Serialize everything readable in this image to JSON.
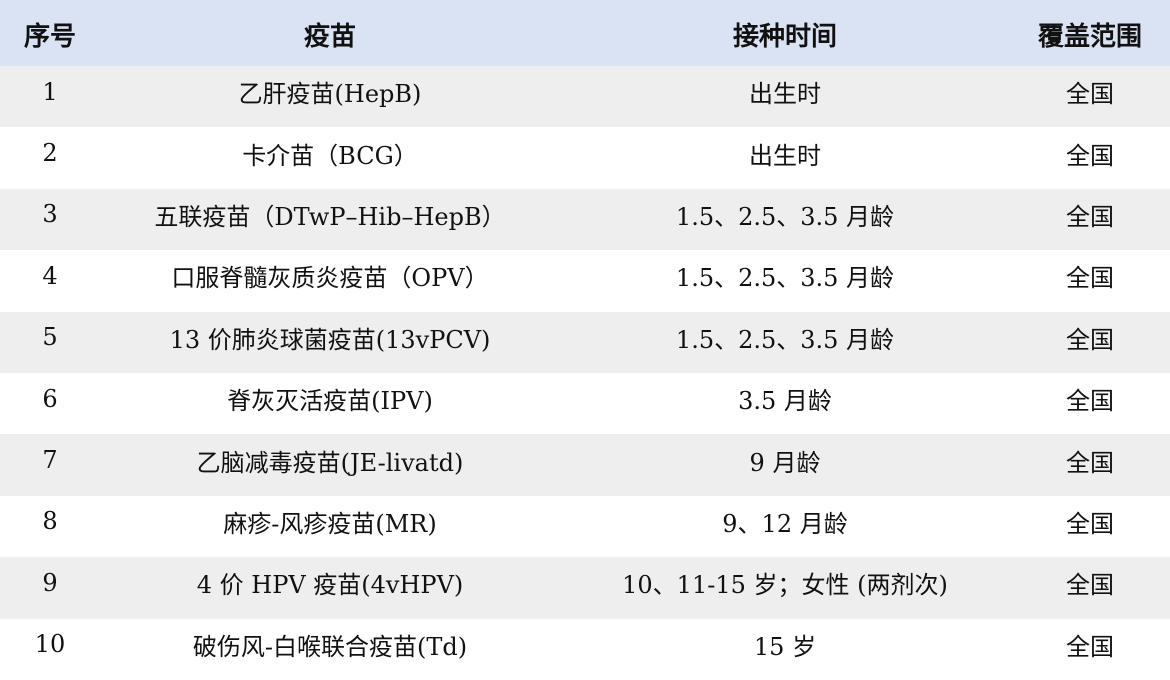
{
  "table": {
    "headers": {
      "index": "序号",
      "vaccine": "疫苗",
      "time": "接种时间",
      "coverage": "覆盖范围"
    },
    "rows": [
      {
        "index": "1",
        "vaccine": "乙肝疫苗(HepB)",
        "time": "出生时",
        "coverage": "全国"
      },
      {
        "index": "2",
        "vaccine": "卡介苗（BCG）",
        "time": "出生时",
        "coverage": "全国"
      },
      {
        "index": "3",
        "vaccine": "五联疫苗（DTwP–Hib–HepB）",
        "time": "1.5、2.5、3.5 月龄",
        "coverage": "全国"
      },
      {
        "index": "4",
        "vaccine": "口服脊髓灰质炎疫苗（OPV）",
        "time": "1.5、2.5、3.5 月龄",
        "coverage": "全国"
      },
      {
        "index": "5",
        "vaccine": "13 价肺炎球菌疫苗(13vPCV)",
        "time": "1.5、2.5、3.5 月龄",
        "coverage": "全国"
      },
      {
        "index": "6",
        "vaccine": "脊灰灭活疫苗(IPV)",
        "time": "3.5 月龄",
        "coverage": "全国"
      },
      {
        "index": "7",
        "vaccine": "乙脑减毒疫苗(JE-livatd)",
        "time": "9 月龄",
        "coverage": "全国"
      },
      {
        "index": "8",
        "vaccine": "麻疹-风疹疫苗(MR)",
        "time": "9、12 月龄",
        "coverage": "全国"
      },
      {
        "index": "9",
        "vaccine": "4 价 HPV 疫苗(4vHPV)",
        "time": "10、11-15 岁；女性 (两剂次)",
        "coverage": "全国"
      },
      {
        "index": "10",
        "vaccine": "破伤风-白喉联合疫苗(Td)",
        "time": "15 岁",
        "coverage": "全国"
      }
    ]
  }
}
